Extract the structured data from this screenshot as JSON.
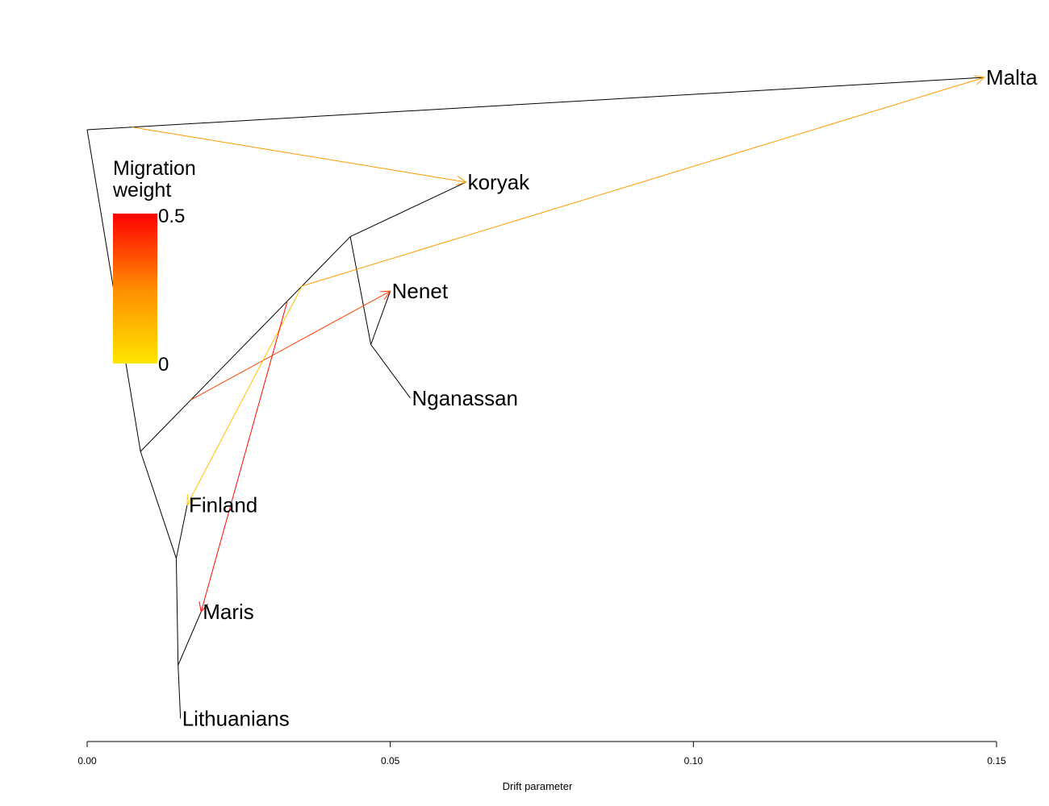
{
  "tree": {
    "leaves": [
      {
        "key": "malta",
        "label": "Malta",
        "drift": 0.148,
        "y": 0.0
      },
      {
        "key": "koryak",
        "label": "koryak",
        "drift": 0.0625,
        "y": 1.96
      },
      {
        "key": "nenet",
        "label": "Nenet",
        "drift": 0.05,
        "y": 4.0
      },
      {
        "key": "nganassan",
        "label": "Nganassan",
        "drift": 0.0533,
        "y": 6.0
      },
      {
        "key": "finland",
        "label": "Finland",
        "drift": 0.0165,
        "y": 8.0
      },
      {
        "key": "maris",
        "label": "Maris",
        "drift": 0.0188,
        "y": 10.0
      },
      {
        "key": "lithuanians",
        "label": "Lithuanians",
        "drift": 0.0154,
        "y": 12.0
      }
    ],
    "internal_nodes": [
      {
        "key": "root",
        "drift": 0.0,
        "y": 0.98
      },
      {
        "key": "n_asia_euro",
        "drift": 0.0088,
        "y": 7.0
      },
      {
        "key": "n_siberia",
        "drift": 0.0434,
        "y": 2.98
      },
      {
        "key": "n_samoyed",
        "drift": 0.0468,
        "y": 5.0
      },
      {
        "key": "n_europe",
        "drift": 0.0147,
        "y": 9.0
      },
      {
        "key": "n_maris_lith",
        "drift": 0.015,
        "y": 11.0
      }
    ],
    "edges": [
      [
        "root",
        "malta"
      ],
      [
        "root",
        "n_asia_euro"
      ],
      [
        "n_asia_euro",
        "n_siberia"
      ],
      [
        "n_asia_euro",
        "n_europe"
      ],
      [
        "n_siberia",
        "koryak"
      ],
      [
        "n_siberia",
        "n_samoyed"
      ],
      [
        "n_samoyed",
        "nenet"
      ],
      [
        "n_samoyed",
        "nganassan"
      ],
      [
        "n_europe",
        "finland"
      ],
      [
        "n_europe",
        "n_maris_lith"
      ],
      [
        "n_maris_lith",
        "maris"
      ],
      [
        "n_maris_lith",
        "lithuanians"
      ]
    ],
    "migrations": [
      {
        "from": "root",
        "from_frac": 0.05,
        "to": "koryak",
        "weight": 0.22
      },
      {
        "from": "n_asia_euro",
        "from_frac": 0.77,
        "to": "malta",
        "weight": 0.2
      },
      {
        "from": "n_asia_euro",
        "from_frac": 0.24,
        "to": "nenet",
        "weight": 0.38
      },
      {
        "from": "n_asia_euro",
        "from_frac": 0.77,
        "to": "finland",
        "weight": 0.1
      },
      {
        "from": "n_asia_euro",
        "from_frac": 0.7,
        "to": "maris",
        "weight": 0.48
      }
    ],
    "edge_color": "#000000"
  },
  "legend": {
    "title_line1": "Migration",
    "title_line2": "weight",
    "max_label": "0.5",
    "min_label": "0",
    "color_max": "#ff0000",
    "color_mid": "#ff8c00",
    "color_min": "#ffe600"
  },
  "axis": {
    "ticks": [
      {
        "value": 0.0,
        "label": "0.00"
      },
      {
        "value": 0.05,
        "label": "0.05"
      },
      {
        "value": 0.1,
        "label": "0.10"
      },
      {
        "value": 0.15,
        "label": "0.15"
      }
    ],
    "xlabel": "Drift parameter",
    "xlim": [
      0.0,
      0.15
    ]
  }
}
